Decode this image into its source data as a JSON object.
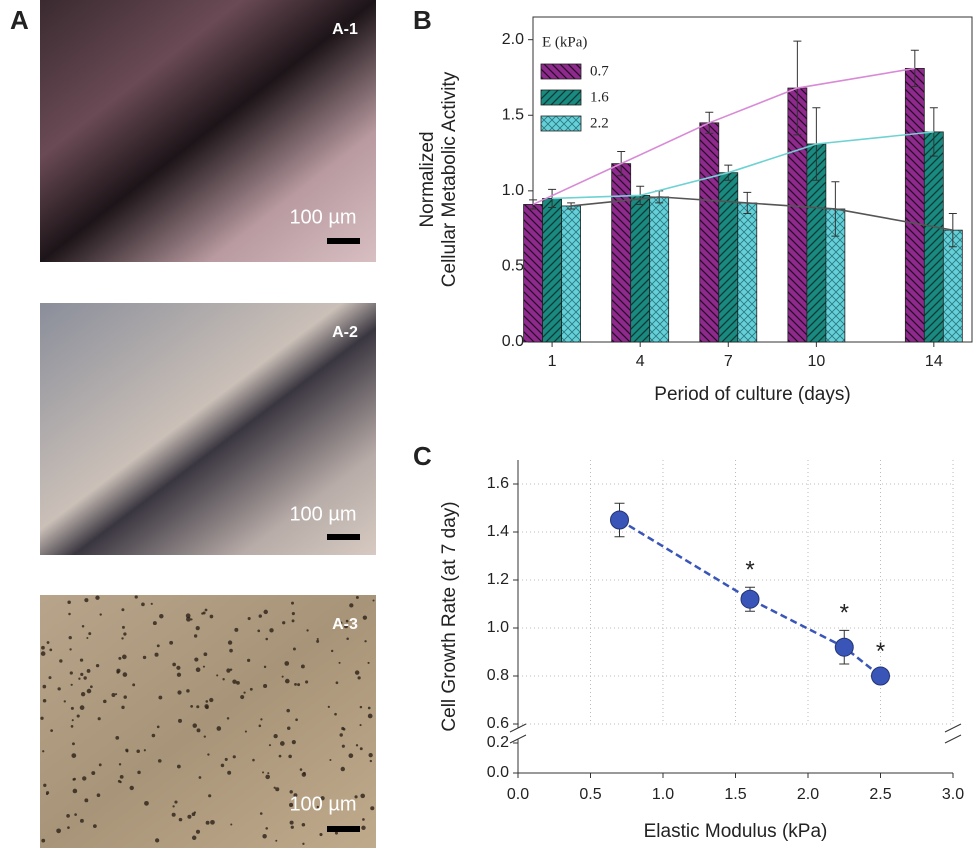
{
  "panel_labels": [
    "A",
    "B",
    "C"
  ],
  "micrographs": [
    {
      "label": "A-1",
      "scale_bar": "100 µm"
    },
    {
      "label": "A-2",
      "scale_bar": "100 µm"
    },
    {
      "label": "A-3",
      "scale_bar": "100 µm"
    }
  ],
  "chart_data": [
    {
      "type": "bar",
      "ylabel": [
        "Normalized",
        "Cellular Metabolic Activity"
      ],
      "xlabel": "Period of culture (days)",
      "legend_title": "E (kPa)",
      "x": [
        1,
        4,
        7,
        10,
        14
      ],
      "xlim": [
        0.35,
        15.3
      ],
      "xticks": [
        1,
        4,
        7,
        10,
        14
      ],
      "ylim": [
        0,
        2.15
      ],
      "yticks": [
        {
          "value": 0,
          "label": "0.0"
        },
        0.5,
        {
          "value": 1,
          "label": "1.0"
        },
        1.5,
        {
          "value": 2,
          "label": "2.0"
        }
      ],
      "series": [
        {
          "name": "0.7",
          "color": "#8e2a8c",
          "trend_color": "#d98ad6",
          "values": [
            0.91,
            1.18,
            1.45,
            1.68,
            1.81
          ],
          "errors": [
            0.03,
            0.08,
            0.07,
            0.31,
            0.12
          ]
        },
        {
          "name": "1.6",
          "color": "#1a8a80",
          "trend_color": "#6fd2d2",
          "values": [
            0.95,
            0.97,
            1.12,
            1.31,
            1.39
          ],
          "errors": [
            0.06,
            0.06,
            0.05,
            0.24,
            0.16
          ]
        },
        {
          "name": "2.2",
          "color": "#66d0d8",
          "trend_color": "#555555",
          "values": [
            0.9,
            0.96,
            0.92,
            0.88,
            0.74
          ],
          "errors": [
            0.02,
            0.04,
            0.07,
            0.18,
            0.11
          ]
        }
      ]
    },
    {
      "type": "scatter",
      "ylabel": "Cell Growth Rate (at 7 day)",
      "xlabel": "Elastic Modulus (kPa)",
      "x": [
        0.7,
        1.6,
        2.25,
        2.5
      ],
      "y": [
        1.45,
        1.12,
        0.92,
        0.8
      ],
      "errors": [
        0.07,
        0.05,
        0.07,
        0.03
      ],
      "annotations": [
        null,
        "*",
        "*",
        "*"
      ],
      "color": "#3a55b8",
      "xlim": [
        0,
        3
      ],
      "xticks": [
        {
          "value": 0,
          "label": "0.0"
        },
        0.5,
        {
          "value": 1,
          "label": "1.0"
        },
        1.5,
        {
          "value": 2,
          "label": "2.0"
        },
        2.5,
        {
          "value": 3,
          "label": "3.0"
        }
      ],
      "ylim": [
        0,
        1.7
      ],
      "ybreak": [
        0.2,
        0.6
      ],
      "yticks": [
        {
          "value": 0,
          "label": "0.0"
        },
        0.2,
        0.6,
        0.8,
        {
          "value": 1,
          "label": "1.0"
        },
        1.2,
        1.4,
        1.6
      ],
      "grid": true
    }
  ]
}
